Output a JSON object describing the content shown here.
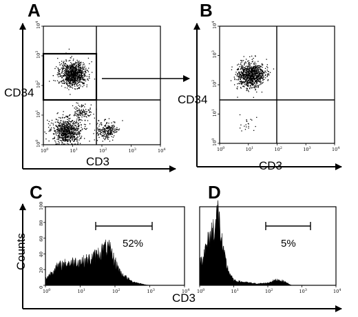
{
  "figure": {
    "panels": {
      "A": {
        "letter": "A",
        "ylabel": "CD34",
        "xlabel": "CD3"
      },
      "B": {
        "letter": "B",
        "ylabel": "CD34",
        "xlabel": "CD3"
      },
      "C": {
        "letter": "C",
        "ylabel": "Counts",
        "marker_label": "52%"
      },
      "D": {
        "letter": "D",
        "marker_label": "5%"
      }
    },
    "bottom_xlabel": "CD3",
    "log_ticks": [
      {
        "base": "10",
        "exp": "0"
      },
      {
        "base": "10",
        "exp": "1"
      },
      {
        "base": "10",
        "exp": "2"
      },
      {
        "base": "10",
        "exp": "3"
      },
      {
        "base": "10",
        "exp": "4"
      }
    ],
    "count_ticks": [
      "0",
      "20",
      "40",
      "60",
      "80",
      "100"
    ]
  },
  "chart_data": [
    {
      "panel": "A",
      "type": "scatter",
      "xlabel": "CD3",
      "ylabel": "CD34",
      "x_scale": "log",
      "y_scale": "log",
      "xlim": [
        1,
        10000
      ],
      "ylim": [
        1,
        10000
      ],
      "quadrant_lines": {
        "x": 60,
        "y": 40
      },
      "gate": {
        "x": [
          1,
          60
        ],
        "y": [
          40,
          2000
        ]
      },
      "populations": [
        {
          "center": [
            10,
            250
          ],
          "count": 900
        },
        {
          "center": [
            6,
            3
          ],
          "count": 700
        },
        {
          "center": [
            150,
            3
          ],
          "count": 220
        },
        {
          "center": [
            20,
            12
          ],
          "count": 120
        }
      ]
    },
    {
      "panel": "B",
      "type": "scatter",
      "xlabel": "CD3",
      "ylabel": "CD34",
      "x_scale": "log",
      "y_scale": "log",
      "xlim": [
        1,
        10000
      ],
      "ylim": [
        1,
        10000
      ],
      "quadrant_lines": {
        "x": 60,
        "y": 40
      },
      "populations": [
        {
          "center": [
            12,
            220
          ],
          "count": 900
        },
        {
          "center": [
            10,
            5
          ],
          "count": 20
        }
      ]
    },
    {
      "panel": "C",
      "type": "area",
      "xlabel": "CD3",
      "ylabel": "Counts",
      "x_scale": "log",
      "xlim": [
        1,
        10000
      ],
      "ylim": [
        0,
        100
      ],
      "x": [
        1,
        2,
        3,
        5,
        8,
        12,
        20,
        30,
        50,
        70,
        100,
        150,
        300,
        700,
        1000
      ],
      "y": [
        8,
        22,
        26,
        28,
        30,
        30,
        33,
        38,
        46,
        45,
        30,
        15,
        5,
        1,
        0
      ],
      "marker": {
        "range": [
          20,
          1000
        ],
        "label": "52%"
      }
    },
    {
      "panel": "D",
      "type": "area",
      "xlabel": "CD3",
      "x_scale": "log",
      "xlim": [
        1,
        10000
      ],
      "ylim": [
        0,
        100
      ],
      "x": [
        1,
        1.5,
        2,
        2.5,
        3,
        3.5,
        4,
        5,
        7,
        10,
        20,
        50,
        100,
        150,
        200,
        300,
        500
      ],
      "y": [
        28,
        45,
        62,
        72,
        80,
        95,
        70,
        40,
        18,
        6,
        4,
        2,
        3,
        6,
        7,
        5,
        0
      ],
      "marker": {
        "range": [
          80,
          1200
        ],
        "label": "5%"
      }
    }
  ]
}
